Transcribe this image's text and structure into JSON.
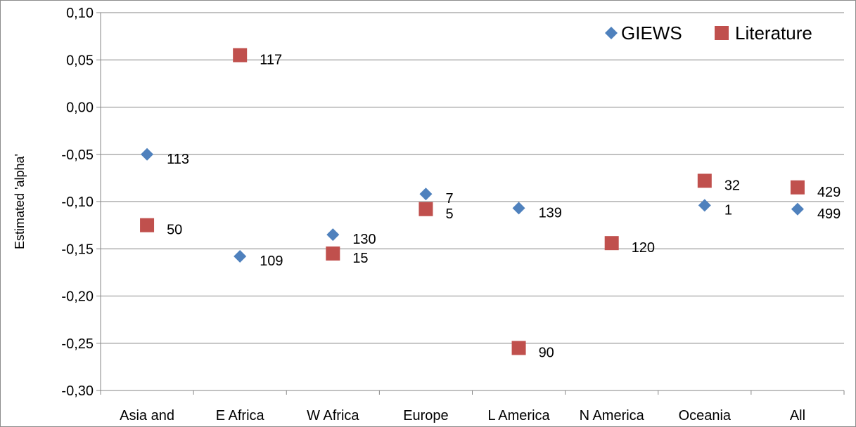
{
  "chart_data": {
    "type": "scatter",
    "title": "",
    "xlabel": "",
    "ylabel": "Estimated 'alpha'",
    "categories": [
      "Asia and",
      "E Africa",
      "W Africa",
      "Europe",
      "L America",
      "N America",
      "Oceania",
      "All"
    ],
    "ylim": [
      -0.3,
      0.1
    ],
    "ytick_step": 0.05,
    "yticks": [
      "0,10",
      "0,05",
      "0,00",
      "-0,05",
      "-0,10",
      "-0,15",
      "-0,20",
      "-0,25",
      "-0,30"
    ],
    "grid": true,
    "legend_position": "top-right",
    "series": [
      {
        "name": "GIEWS",
        "marker": "diamond",
        "color": "#4F81BD",
        "points": [
          {
            "category": "Asia and",
            "y": -0.05,
            "label": "113"
          },
          {
            "category": "E Africa",
            "y": -0.158,
            "label": "109"
          },
          {
            "category": "W Africa",
            "y": -0.135,
            "label": "130"
          },
          {
            "category": "Europe",
            "y": -0.092,
            "label": "7"
          },
          {
            "category": "L America",
            "y": -0.107,
            "label": "139"
          },
          {
            "category": "Oceania",
            "y": -0.104,
            "label": "1"
          },
          {
            "category": "All",
            "y": -0.108,
            "label": "499"
          }
        ]
      },
      {
        "name": "Literature",
        "marker": "square",
        "color": "#C0504D",
        "points": [
          {
            "category": "Asia and",
            "y": -0.125,
            "label": "50"
          },
          {
            "category": "E Africa",
            "y": 0.055,
            "label": "117"
          },
          {
            "category": "W Africa",
            "y": -0.155,
            "label": "15"
          },
          {
            "category": "Europe",
            "y": -0.108,
            "label": "5"
          },
          {
            "category": "L America",
            "y": -0.255,
            "label": "90"
          },
          {
            "category": "N America",
            "y": -0.144,
            "label": "120"
          },
          {
            "category": "Oceania",
            "y": -0.078,
            "label": "32"
          },
          {
            "category": "All",
            "y": -0.085,
            "label": "429"
          }
        ]
      }
    ]
  }
}
